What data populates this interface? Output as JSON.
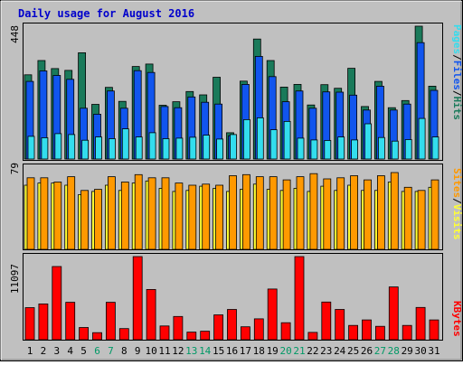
{
  "title": "Daily usage for August 2016",
  "colors": {
    "background": "#c0c0c0",
    "title": "#0000cc",
    "hits": "#1a7a5a",
    "files": "#1155ee",
    "pages": "#33ddee",
    "visits": "#ff9900",
    "sites": "#ffff33",
    "kbytes": "#ff0000",
    "weekend_day": "#009966",
    "weekday": "#000000"
  },
  "legend": {
    "top": [
      "Pages",
      "/",
      "Files",
      "/",
      "Hits"
    ],
    "middle": [
      "Sites",
      "/",
      "Visits"
    ],
    "bottom": [
      "KBytes"
    ]
  },
  "chart_data": [
    {
      "type": "bar",
      "panel": "hits-files-pages",
      "categories": [
        "1",
        "2",
        "3",
        "4",
        "5",
        "6",
        "7",
        "8",
        "9",
        "10",
        "11",
        "12",
        "13",
        "14",
        "15",
        "16",
        "17",
        "18",
        "19",
        "20",
        "21",
        "22",
        "23",
        "24",
        "25",
        "26",
        "27",
        "28",
        "29",
        "30",
        "31"
      ],
      "ymax_label": "448",
      "ylim": [
        0,
        448
      ],
      "series": [
        {
          "name": "Hits",
          "values": [
            282,
            330,
            303,
            297,
            356,
            183,
            240,
            193,
            310,
            318,
            180,
            192,
            226,
            215,
            274,
            88,
            261,
            402,
            330,
            241,
            250,
            181,
            249,
            237,
            304,
            176,
            260,
            172,
            196,
            445,
            244
          ]
        },
        {
          "name": "Files",
          "values": [
            260,
            295,
            280,
            267,
            170,
            150,
            228,
            170,
            296,
            290,
            176,
            172,
            208,
            190,
            184,
            78,
            250,
            344,
            276,
            192,
            228,
            170,
            225,
            224,
            214,
            164,
            244,
            164,
            184,
            390,
            230
          ]
        },
        {
          "name": "Pages",
          "values": [
            76,
            71,
            85,
            82,
            63,
            74,
            68,
            101,
            74,
            88,
            68,
            70,
            73,
            80,
            67,
            82,
            132,
            138,
            98,
            126,
            70,
            64,
            62,
            74,
            64,
            118,
            72,
            60,
            65,
            136,
            74
          ]
        }
      ]
    },
    {
      "type": "bar",
      "panel": "visits-sites",
      "categories": [
        "1",
        "2",
        "3",
        "4",
        "5",
        "6",
        "7",
        "8",
        "9",
        "10",
        "11",
        "12",
        "13",
        "14",
        "15",
        "16",
        "17",
        "18",
        "19",
        "20",
        "21",
        "22",
        "23",
        "24",
        "25",
        "26",
        "27",
        "28",
        "29",
        "30",
        "31"
      ],
      "ymax_label": "79",
      "ylim": [
        0,
        79
      ],
      "series": [
        {
          "name": "Visits",
          "values": [
            68,
            68,
            64,
            69,
            56,
            57,
            69,
            64,
            71,
            68,
            68,
            63,
            61,
            62,
            61,
            70,
            71,
            69,
            69,
            66,
            69,
            72,
            67,
            68,
            70,
            66,
            70,
            73,
            59,
            56,
            66
          ]
        },
        {
          "name": "Sites",
          "values": [
            61,
            63,
            63,
            61,
            52,
            55,
            61,
            56,
            63,
            65,
            58,
            55,
            56,
            60,
            58,
            55,
            57,
            62,
            57,
            56,
            58,
            55,
            60,
            56,
            61,
            56,
            56,
            64,
            55,
            55,
            59
          ]
        }
      ]
    },
    {
      "type": "bar",
      "panel": "kbytes",
      "categories": [
        "1",
        "2",
        "3",
        "4",
        "5",
        "6",
        "7",
        "8",
        "9",
        "10",
        "11",
        "12",
        "13",
        "14",
        "15",
        "16",
        "17",
        "18",
        "19",
        "20",
        "21",
        "22",
        "23",
        "24",
        "25",
        "26",
        "27",
        "28",
        "29",
        "30",
        "31"
      ],
      "ymax_label": "11097",
      "ylim": [
        0,
        11097
      ],
      "series": [
        {
          "name": "KBytes",
          "values": [
            4286,
            4777,
            9776,
            4998,
            1632,
            938,
            4998,
            1484,
            11097,
            6708,
            1829,
            3094,
            1010,
            1128,
            3313,
            4041,
            1729,
            2781,
            6771,
            2271,
            11097,
            976,
            5025,
            4041,
            1905,
            2639,
            1784,
            7045,
            1905,
            4303,
            2639
          ]
        }
      ]
    }
  ],
  "weekend_days": [
    6,
    7,
    13,
    14,
    20,
    21,
    27,
    28
  ]
}
